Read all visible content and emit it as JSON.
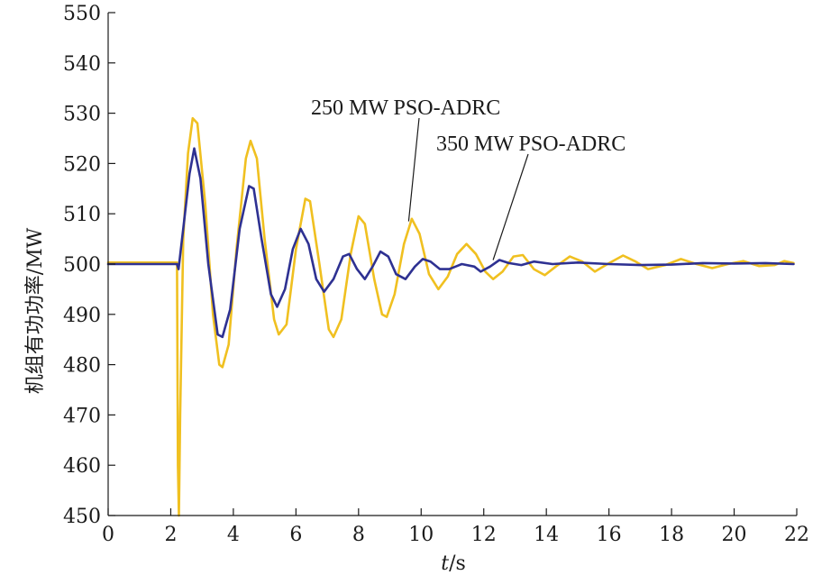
{
  "chart_data": {
    "type": "line",
    "title": "",
    "xlabel": "t/s",
    "ylabel": "机组有功功率/MW",
    "xlim": [
      0,
      22
    ],
    "ylim": [
      450,
      550
    ],
    "xticks": [
      0,
      2,
      4,
      6,
      8,
      10,
      12,
      14,
      16,
      18,
      20,
      22
    ],
    "yticks": [
      450,
      460,
      470,
      480,
      490,
      500,
      510,
      520,
      530,
      540,
      550
    ],
    "grid": false,
    "series": [
      {
        "name": "250 MW PSO-ADRC",
        "color": "#2e3192",
        "points": [
          [
            0,
            500
          ],
          [
            2.2,
            500
          ],
          [
            2.25,
            499
          ],
          [
            2.4,
            507
          ],
          [
            2.6,
            518
          ],
          [
            2.75,
            523
          ],
          [
            2.95,
            517
          ],
          [
            3.2,
            500
          ],
          [
            3.5,
            486
          ],
          [
            3.65,
            485.5
          ],
          [
            3.9,
            491
          ],
          [
            4.2,
            507
          ],
          [
            4.5,
            515.5
          ],
          [
            4.65,
            515
          ],
          [
            4.9,
            505
          ],
          [
            5.2,
            494
          ],
          [
            5.4,
            491.5
          ],
          [
            5.65,
            495
          ],
          [
            5.9,
            503
          ],
          [
            6.15,
            507
          ],
          [
            6.4,
            504
          ],
          [
            6.65,
            497
          ],
          [
            6.9,
            494.5
          ],
          [
            7.2,
            497
          ],
          [
            7.5,
            501.5
          ],
          [
            7.7,
            502
          ],
          [
            7.95,
            499
          ],
          [
            8.2,
            497
          ],
          [
            8.45,
            499.5
          ],
          [
            8.7,
            502.5
          ],
          [
            8.95,
            501.5
          ],
          [
            9.2,
            498
          ],
          [
            9.5,
            497
          ],
          [
            9.8,
            499.5
          ],
          [
            10.05,
            501
          ],
          [
            10.3,
            500.5
          ],
          [
            10.6,
            499
          ],
          [
            10.9,
            499
          ],
          [
            11.3,
            500
          ],
          [
            11.7,
            499.5
          ],
          [
            11.9,
            498.5
          ],
          [
            12.2,
            499.5
          ],
          [
            12.5,
            500.8
          ],
          [
            12.8,
            500.2
          ],
          [
            13.2,
            499.8
          ],
          [
            13.6,
            500.5
          ],
          [
            14.2,
            500
          ],
          [
            15,
            500.3
          ],
          [
            16,
            500
          ],
          [
            17,
            499.8
          ],
          [
            18,
            499.9
          ],
          [
            19,
            500.2
          ],
          [
            20,
            500.1
          ],
          [
            21,
            500.2
          ],
          [
            21.9,
            500
          ]
        ]
      },
      {
        "name": "350 MW PSO-ADRC",
        "color": "#f0c020",
        "points": [
          [
            0,
            500.3
          ],
          [
            2.2,
            500.3
          ],
          [
            2.23,
            460
          ],
          [
            2.26,
            450
          ],
          [
            2.3,
            470
          ],
          [
            2.4,
            505
          ],
          [
            2.55,
            522
          ],
          [
            2.7,
            529
          ],
          [
            2.85,
            528
          ],
          [
            3.1,
            512
          ],
          [
            3.35,
            490
          ],
          [
            3.55,
            480
          ],
          [
            3.65,
            479.5
          ],
          [
            3.85,
            484
          ],
          [
            4.1,
            503
          ],
          [
            4.4,
            521
          ],
          [
            4.55,
            524.5
          ],
          [
            4.75,
            521
          ],
          [
            5.0,
            505
          ],
          [
            5.3,
            489
          ],
          [
            5.45,
            486
          ],
          [
            5.7,
            488
          ],
          [
            6.0,
            503
          ],
          [
            6.3,
            513
          ],
          [
            6.45,
            512.5
          ],
          [
            6.75,
            500
          ],
          [
            7.05,
            487
          ],
          [
            7.2,
            485.5
          ],
          [
            7.45,
            489
          ],
          [
            7.75,
            502
          ],
          [
            8.0,
            509.5
          ],
          [
            8.2,
            508
          ],
          [
            8.5,
            497
          ],
          [
            8.75,
            490
          ],
          [
            8.9,
            489.5
          ],
          [
            9.15,
            494
          ],
          [
            9.45,
            504
          ],
          [
            9.7,
            509
          ],
          [
            9.95,
            506
          ],
          [
            10.25,
            498
          ],
          [
            10.55,
            495
          ],
          [
            10.85,
            497.5
          ],
          [
            11.15,
            502
          ],
          [
            11.45,
            504
          ],
          [
            11.75,
            502
          ],
          [
            12.05,
            498.5
          ],
          [
            12.3,
            497
          ],
          [
            12.6,
            498.5
          ],
          [
            12.95,
            501.5
          ],
          [
            13.25,
            501.8
          ],
          [
            13.6,
            499
          ],
          [
            13.95,
            497.8
          ],
          [
            14.3,
            499.5
          ],
          [
            14.75,
            501.5
          ],
          [
            15.15,
            500.5
          ],
          [
            15.55,
            498.5
          ],
          [
            15.95,
            500
          ],
          [
            16.45,
            501.7
          ],
          [
            16.85,
            500.5
          ],
          [
            17.25,
            499
          ],
          [
            17.8,
            499.8
          ],
          [
            18.3,
            501
          ],
          [
            18.8,
            500
          ],
          [
            19.3,
            499.2
          ],
          [
            19.8,
            500
          ],
          [
            20.3,
            500.6
          ],
          [
            20.8,
            499.6
          ],
          [
            21.3,
            499.8
          ],
          [
            21.6,
            500.6
          ],
          [
            21.9,
            500.2
          ]
        ]
      }
    ],
    "annotations": [
      {
        "text": "250 MW PSO-ADRC",
        "target": [
          9.6,
          508.5
        ]
      },
      {
        "text": "350 MW PSO-ADRC",
        "target": [
          12.3,
          500.8
        ]
      }
    ]
  }
}
